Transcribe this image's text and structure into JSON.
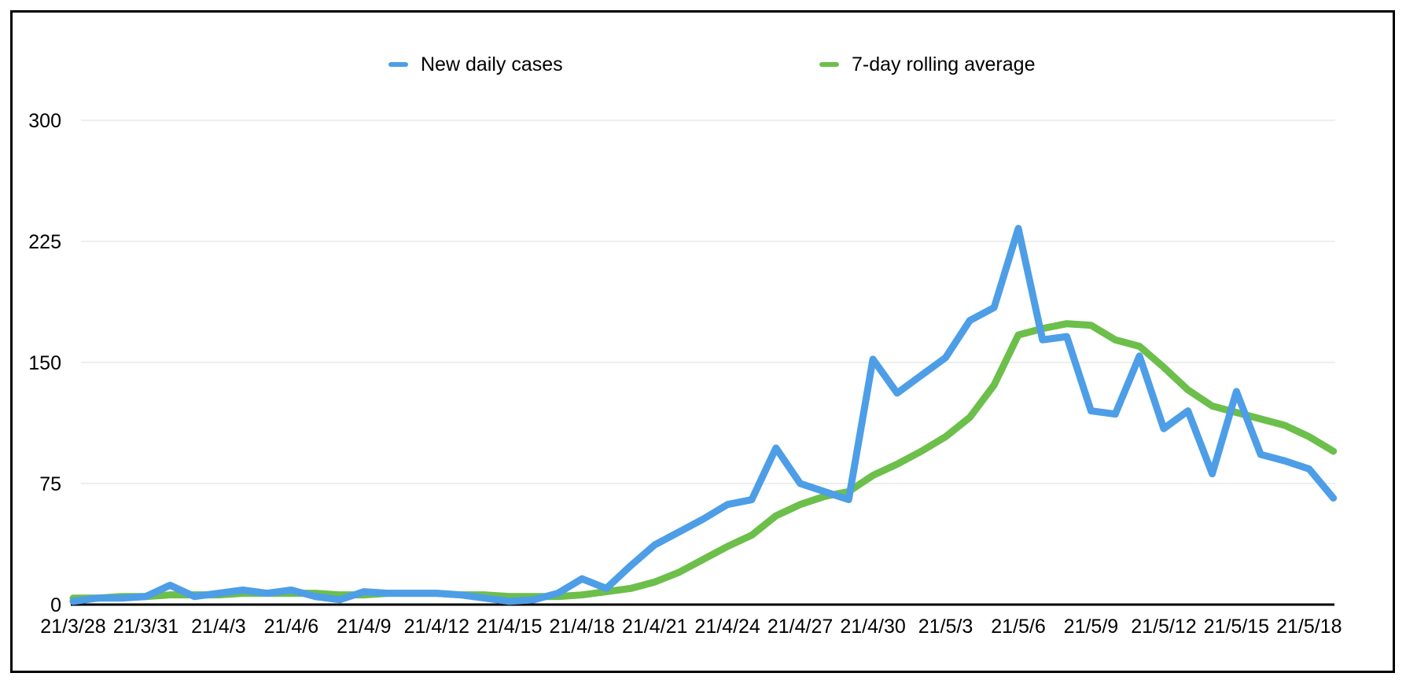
{
  "legend": {
    "position": "top"
  },
  "axes": {
    "y_tick_labels": [
      "0",
      "75",
      "150",
      "225",
      "300"
    ],
    "x_tick_labels": [
      "21/3/28",
      "21/3/31",
      "21/4/3",
      "21/4/6",
      "21/4/9",
      "21/4/12",
      "21/4/15",
      "21/4/18",
      "21/4/21",
      "21/4/24",
      "21/4/27",
      "21/4/30",
      "21/5/3",
      "21/5/6",
      "21/5/9",
      "21/5/12",
      "21/5/15",
      "21/5/18"
    ]
  },
  "chart_data": {
    "type": "line",
    "title": "",
    "xlabel": "",
    "ylabel": "",
    "ylim": [
      0,
      300
    ],
    "y_ticks": [
      0,
      75,
      150,
      225,
      300
    ],
    "grid": "horizontal",
    "gridline_color": "#dcdcdc",
    "axis_color": "#000000",
    "legend_position": "top",
    "x_tick_every": 3,
    "x": [
      "21/3/28",
      "21/3/29",
      "21/3/30",
      "21/3/31",
      "21/4/1",
      "21/4/2",
      "21/4/3",
      "21/4/4",
      "21/4/5",
      "21/4/6",
      "21/4/7",
      "21/4/8",
      "21/4/9",
      "21/4/10",
      "21/4/11",
      "21/4/12",
      "21/4/13",
      "21/4/14",
      "21/4/15",
      "21/4/16",
      "21/4/17",
      "21/4/18",
      "21/4/19",
      "21/4/20",
      "21/4/21",
      "21/4/22",
      "21/4/23",
      "21/4/24",
      "21/4/25",
      "21/4/26",
      "21/4/27",
      "21/4/28",
      "21/4/29",
      "21/4/30",
      "21/5/1",
      "21/5/2",
      "21/5/3",
      "21/5/4",
      "21/5/5",
      "21/5/6",
      "21/5/7",
      "21/5/8",
      "21/5/9",
      "21/5/10",
      "21/5/11",
      "21/5/12",
      "21/5/13",
      "21/5/14",
      "21/5/15",
      "21/5/16",
      "21/5/17",
      "21/5/18",
      "21/5/19"
    ],
    "series": [
      {
        "name": "New daily cases",
        "color": "#4d9ee7",
        "values": [
          2,
          4,
          4,
          5,
          12,
          5,
          7,
          9,
          7,
          9,
          5,
          3,
          8,
          7,
          7,
          7,
          6,
          4,
          2,
          3,
          7,
          16,
          10,
          24,
          37,
          45,
          53,
          62,
          65,
          97,
          75,
          70,
          65,
          152,
          131,
          142,
          153,
          176,
          184,
          233,
          164,
          166,
          120,
          118,
          154,
          109,
          120,
          81,
          132,
          93,
          89,
          84,
          66
        ]
      },
      {
        "name": "7-day rolling average",
        "color": "#6cbf4a",
        "values": [
          4,
          4,
          5,
          5,
          6,
          6,
          6,
          7,
          7,
          7,
          7,
          6,
          6,
          7,
          7,
          7,
          6,
          6,
          5,
          5,
          5,
          6,
          8,
          10,
          14,
          20,
          28,
          36,
          43,
          55,
          62,
          67,
          70,
          80,
          87,
          95,
          104,
          116,
          136,
          167,
          171,
          174,
          173,
          164,
          160,
          147,
          133,
          123,
          119,
          115,
          111,
          104,
          95
        ]
      }
    ]
  }
}
